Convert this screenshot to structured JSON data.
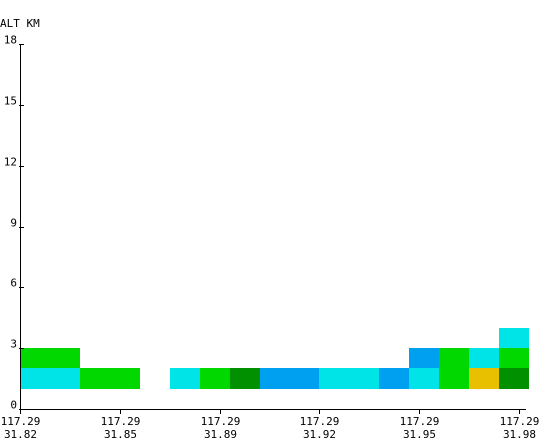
{
  "chart_data": {
    "type": "heatmap",
    "ylabel": "ALT KM",
    "ylim": [
      0,
      18
    ],
    "y_ticks": [
      "0",
      "3",
      "6",
      "9",
      "12",
      "15",
      "18"
    ],
    "x_range": [
      0,
      5
    ],
    "x_ticks": [
      {
        "lon": "117.29",
        "lat": "31.82"
      },
      {
        "lon": "117.29",
        "lat": "31.85"
      },
      {
        "lon": "117.29",
        "lat": "31.89"
      },
      {
        "lon": "117.29",
        "lat": "31.92"
      },
      {
        "lon": "117.29",
        "lat": "31.95"
      },
      {
        "lon": "117.29",
        "lat": "31.98"
      }
    ],
    "colors": {
      "cyan": "#00e4e8",
      "green": "#00d800",
      "dark_green": "#009000",
      "blue": "#00a0f0",
      "yellow": "#e8c000"
    },
    "cells": [
      {
        "x": [
          0.0,
          0.6
        ],
        "y": [
          1.0,
          2.0
        ],
        "color": "cyan"
      },
      {
        "x": [
          0.0,
          0.6
        ],
        "y": [
          2.0,
          3.0
        ],
        "color": "green"
      },
      {
        "x": [
          0.6,
          1.2
        ],
        "y": [
          1.0,
          2.0
        ],
        "color": "green"
      },
      {
        "x": [
          1.5,
          1.8
        ],
        "y": [
          1.0,
          2.0
        ],
        "color": "cyan"
      },
      {
        "x": [
          1.8,
          2.1
        ],
        "y": [
          1.0,
          2.0
        ],
        "color": "green"
      },
      {
        "x": [
          2.1,
          2.4
        ],
        "y": [
          1.0,
          2.0
        ],
        "color": "dark_green"
      },
      {
        "x": [
          2.4,
          3.0
        ],
        "y": [
          1.0,
          2.0
        ],
        "color": "blue"
      },
      {
        "x": [
          3.0,
          3.6
        ],
        "y": [
          1.0,
          2.0
        ],
        "color": "cyan"
      },
      {
        "x": [
          3.6,
          3.9
        ],
        "y": [
          1.0,
          2.0
        ],
        "color": "blue"
      },
      {
        "x": [
          3.9,
          4.2
        ],
        "y": [
          1.0,
          2.0
        ],
        "color": "cyan"
      },
      {
        "x": [
          3.9,
          4.2
        ],
        "y": [
          2.0,
          3.0
        ],
        "color": "blue"
      },
      {
        "x": [
          4.2,
          4.5
        ],
        "y": [
          1.0,
          2.0
        ],
        "color": "green"
      },
      {
        "x": [
          4.2,
          4.5
        ],
        "y": [
          2.0,
          3.0
        ],
        "color": "green"
      },
      {
        "x": [
          4.5,
          4.8
        ],
        "y": [
          1.0,
          2.0
        ],
        "color": "yellow"
      },
      {
        "x": [
          4.5,
          4.8
        ],
        "y": [
          2.0,
          3.0
        ],
        "color": "cyan"
      },
      {
        "x": [
          4.8,
          5.1
        ],
        "y": [
          1.0,
          2.0
        ],
        "color": "dark_green"
      },
      {
        "x": [
          4.8,
          5.1
        ],
        "y": [
          2.0,
          3.0
        ],
        "color": "green"
      },
      {
        "x": [
          4.8,
          5.1
        ],
        "y": [
          3.0,
          4.0
        ],
        "color": "cyan"
      }
    ]
  }
}
